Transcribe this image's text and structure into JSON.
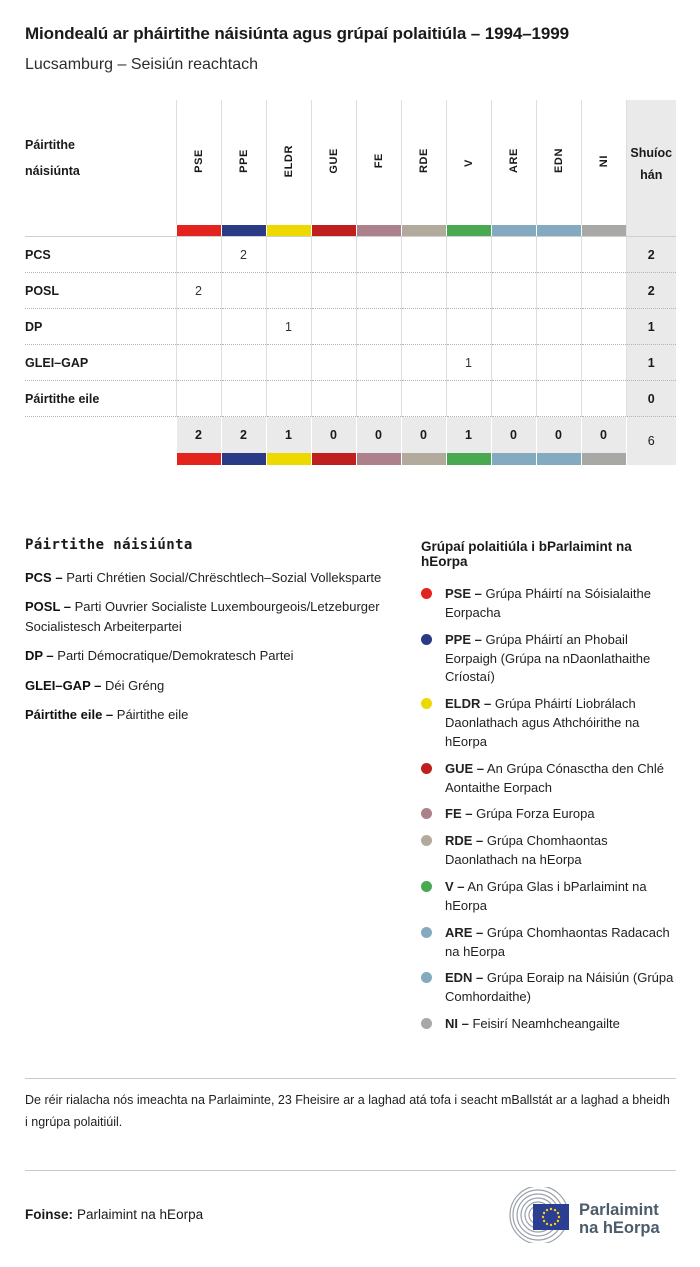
{
  "title": "Miondealú ar pháirtithe náisiúnta agus grúpaí polaitiúla – 1994–1999",
  "subtitle": "Lucsamburg – Seisiún reachtach",
  "table": {
    "left_header_label": "Páirtithe náisiúnta",
    "seats_header_label": "Shuíochán",
    "groups": [
      {
        "id": "PSE",
        "color": "#e2231e"
      },
      {
        "id": "PPE",
        "color": "#2a3a85"
      },
      {
        "id": "ELDR",
        "color": "#ebd900"
      },
      {
        "id": "GUE",
        "color": "#c01f1f"
      },
      {
        "id": "FE",
        "color": "#ad818c"
      },
      {
        "id": "RDE",
        "color": "#b2ab9d"
      },
      {
        "id": "V",
        "color": "#4aa850"
      },
      {
        "id": "ARE",
        "color": "#83aabf"
      },
      {
        "id": "EDN",
        "color": "#83aabf"
      },
      {
        "id": "NI",
        "color": "#a8a8a5"
      }
    ],
    "rows": [
      {
        "label": "PCS",
        "values": [
          "",
          "2",
          "",
          "",
          "",
          "",
          "",
          "",
          "",
          ""
        ],
        "total": "2"
      },
      {
        "label": "POSL",
        "values": [
          "2",
          "",
          "",
          "",
          "",
          "",
          "",
          "",
          "",
          ""
        ],
        "total": "2"
      },
      {
        "label": "DP",
        "values": [
          "",
          "",
          "1",
          "",
          "",
          "",
          "",
          "",
          "",
          ""
        ],
        "total": "1"
      },
      {
        "label": "GLEI–GAP",
        "values": [
          "",
          "",
          "",
          "",
          "",
          "",
          "1",
          "",
          "",
          ""
        ],
        "total": "1"
      },
      {
        "label": "Páirtithe eile",
        "values": [
          "",
          "",
          "",
          "",
          "",
          "",
          "",
          "",
          "",
          ""
        ],
        "total": "0"
      }
    ],
    "totals": {
      "values": [
        "2",
        "2",
        "1",
        "0",
        "0",
        "0",
        "1",
        "0",
        "0",
        "0"
      ],
      "total": "6"
    }
  },
  "chart_data": {
    "type": "table",
    "title": "Miondealú ar pháirtithe náisiúnta agus grúpaí polaitiúla – 1994–1999",
    "subtitle": "Lucsamburg – Seisiún reachtach",
    "columns": [
      "PSE",
      "PPE",
      "ELDR",
      "GUE",
      "FE",
      "RDE",
      "V",
      "ARE",
      "EDN",
      "NI",
      "Shuíochán"
    ],
    "rows": [
      {
        "label": "PCS",
        "values": [
          null,
          2,
          null,
          null,
          null,
          null,
          null,
          null,
          null,
          null
        ],
        "total": 2
      },
      {
        "label": "POSL",
        "values": [
          2,
          null,
          null,
          null,
          null,
          null,
          null,
          null,
          null,
          null
        ],
        "total": 2
      },
      {
        "label": "DP",
        "values": [
          null,
          null,
          1,
          null,
          null,
          null,
          null,
          null,
          null,
          null
        ],
        "total": 1
      },
      {
        "label": "GLEI–GAP",
        "values": [
          null,
          null,
          null,
          null,
          null,
          null,
          1,
          null,
          null,
          null
        ],
        "total": 1
      },
      {
        "label": "Páirtithe eile",
        "values": [
          null,
          null,
          null,
          null,
          null,
          null,
          null,
          null,
          null,
          null
        ],
        "total": 0
      }
    ],
    "column_totals": [
      2,
      2,
      1,
      0,
      0,
      0,
      1,
      0,
      0,
      0
    ],
    "grand_total": 6
  },
  "legend_parties": {
    "heading": "Páirtithe náisiúnta",
    "items": [
      {
        "abbr": "PCS –",
        "name": "Parti Chrétien Social/Chrëschtlech–Sozial Volleksparte"
      },
      {
        "abbr": "POSL –",
        "name": "Parti Ouvrier Socialiste Luxembourgeois/Letzeburger Socialistesch Arbeiterpartei"
      },
      {
        "abbr": "DP –",
        "name": "Parti Démocratique/Demokratesch Partei"
      },
      {
        "abbr": "GLEI–GAP –",
        "name": "Déi Gréng"
      },
      {
        "abbr": "Páirtithe eile –",
        "name": "Páirtithe eile"
      }
    ]
  },
  "legend_groups": {
    "heading": "Grúpaí polaitiúla i bParlaimint na hEorpa",
    "items": [
      {
        "abbr": "PSE –",
        "name": "Grúpa Pháirtí na Sóisialaithe Eorpacha",
        "color": "#e2231e"
      },
      {
        "abbr": "PPE –",
        "name": "Grúpa Pháirtí an Phobail Eorpaigh (Grúpa na nDaonlathaithe Críostaí)",
        "color": "#2a3a85"
      },
      {
        "abbr": "ELDR –",
        "name": "Grúpa Pháirtí Liobrálach Daonlathach agus Athchóirithe na hEorpa",
        "color": "#ebd900"
      },
      {
        "abbr": "GUE –",
        "name": "An Grúpa Cónasctha den Chlé Aontaithe Eorpach",
        "color": "#c01f1f"
      },
      {
        "abbr": "FE –",
        "name": "Grúpa Forza Europa",
        "color": "#ad818c"
      },
      {
        "abbr": "RDE –",
        "name": "Grúpa Chomhaontas Daonlathach na hEorpa",
        "color": "#b2ab9d"
      },
      {
        "abbr": "V –",
        "name": "An Grúpa Glas i bParlaimint na hEorpa",
        "color": "#4aa850"
      },
      {
        "abbr": "ARE –",
        "name": "Grúpa Chomhaontas Radacach na hEorpa",
        "color": "#83aabf"
      },
      {
        "abbr": "EDN –",
        "name": "Grúpa Eoraip na Náisiún (Grúpa Comhordaithe)",
        "color": "#83aabf"
      },
      {
        "abbr": "NI –",
        "name": "Feisirí Neamhcheangailte",
        "color": "#a8a8a5"
      }
    ]
  },
  "footnote": "De réir rialacha nós imeachta na Parlaiminte, 23 Fheisire ar a laghad atá tofa i seacht mBallstát ar a laghad a bheidh i ngrúpa polaitiúil.",
  "source": {
    "label": "Foinse:",
    "value": "Parlaimint na hEorpa"
  },
  "logo": {
    "line1": "Parlaimint",
    "line2": "na hEorpa"
  }
}
